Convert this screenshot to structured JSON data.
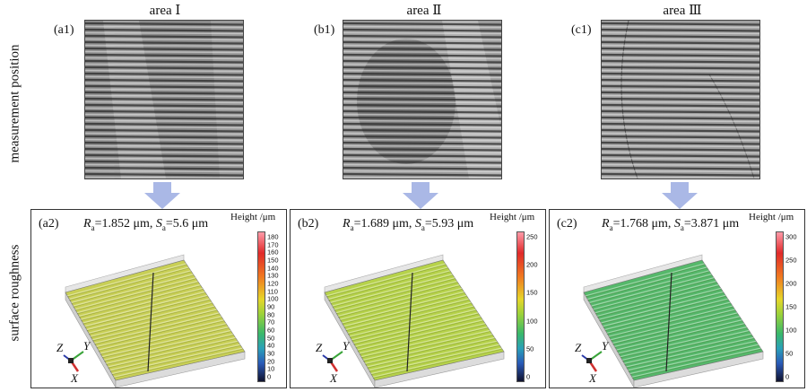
{
  "row_labels": {
    "top": "measurement position",
    "bottom": "surface roughness"
  },
  "columns": [
    {
      "title": "area Ⅰ",
      "micro_label": "(a1)",
      "panel_label": "(a2)",
      "Ra": "1.852",
      "Sa": "5.6",
      "unit": "μm",
      "height_title": "Height /μm",
      "ticks": [
        "180",
        "170",
        "160",
        "150",
        "140",
        "130",
        "120",
        "110",
        "100",
        "90",
        "80",
        "70",
        "60",
        "50",
        "40",
        "30",
        "20",
        "10",
        "0"
      ],
      "surface_color": "#c8cf55"
    },
    {
      "title": "area Ⅱ",
      "micro_label": "(b1)",
      "panel_label": "(b2)",
      "Ra": "1.689",
      "Sa": "5.93",
      "unit": "μm",
      "height_title": "Height /μm",
      "ticks": [
        "250",
        "200",
        "150",
        "100",
        "50",
        "0"
      ],
      "surface_color": "#b6d24a"
    },
    {
      "title": "area Ⅲ",
      "micro_label": "(c1)",
      "panel_label": "(c2)",
      "Ra": "1.768",
      "Sa": "3.871",
      "unit": "μm",
      "height_title": "Height /μm",
      "ticks": [
        "300",
        "250",
        "200",
        "150",
        "100",
        "50",
        "0"
      ],
      "surface_color": "#55b86a"
    }
  ],
  "axis_labels": {
    "z": "Z",
    "y": "Y",
    "x": "X"
  },
  "colors": {
    "arrow": "#aab8e6",
    "cbar_top": "#ff9aa8",
    "cbar_bottom": "#10122e"
  }
}
